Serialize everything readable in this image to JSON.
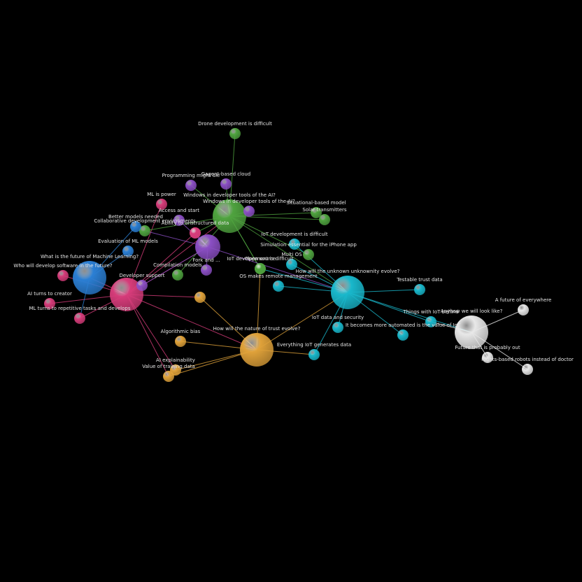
{
  "palette": {
    "background": "#000000",
    "pink": "#d63c7a",
    "blue": "#2b7fd4",
    "green": "#4fa33f",
    "purple": "#8b4fc4",
    "cyan": "#19b8cc",
    "orange": "#e0a23a",
    "white": "#e8e8e8"
  },
  "nodes": [
    {
      "id": "pink-hub",
      "group": "pink",
      "size": "large",
      "label": ""
    },
    {
      "id": "blue-hub",
      "group": "blue",
      "size": "large",
      "label": "What is the future of Machine Learning?"
    },
    {
      "id": "green-hub",
      "group": "green",
      "size": "large",
      "label": "Windows in developer tools of the AI?"
    },
    {
      "id": "purple-hub",
      "group": "purple",
      "size": "medium",
      "label": ""
    },
    {
      "id": "cyan-hub",
      "group": "cyan",
      "size": "large",
      "label": "How will the unknown unknownity evolve?"
    },
    {
      "id": "orange-hub",
      "group": "orange",
      "size": "large",
      "label": "How will the nature of trust evolve?"
    },
    {
      "id": "white-hub",
      "group": "white",
      "size": "large",
      "label": "Anyhow we will look like?"
    },
    {
      "id": "g-drone",
      "group": "green",
      "size": "small",
      "label": "Drone development is difficult"
    },
    {
      "id": "g-collab",
      "group": "green",
      "size": "small",
      "label": "Collaborative development environments"
    },
    {
      "id": "g-compmd",
      "group": "green",
      "size": "small",
      "label": "Compilation models"
    },
    {
      "id": "g-sim",
      "group": "green",
      "size": "small",
      "label": "Simulation essential for the iPhone app"
    },
    {
      "id": "g-iot",
      "group": "green",
      "size": "small",
      "label": "IoT development is difficult"
    },
    {
      "id": "g-solar",
      "group": "green",
      "size": "small",
      "label": "Solar transmitters"
    },
    {
      "id": "g-os",
      "group": "green",
      "size": "small",
      "label": "Open source"
    },
    {
      "id": "g-sit",
      "group": "green",
      "size": "small",
      "label": "Situational-based model"
    },
    {
      "id": "p-prog",
      "group": "purple",
      "size": "small",
      "label": "Programming might die"
    },
    {
      "id": "p-cloud",
      "group": "purple",
      "size": "small",
      "label": "Gagent-based cloud"
    },
    {
      "id": "p-wind",
      "group": "purple",
      "size": "small",
      "label": "Windows in developer tools of the AI?"
    },
    {
      "id": "p-access",
      "group": "purple",
      "size": "small",
      "label": "Access and start"
    },
    {
      "id": "p-fork",
      "group": "purple",
      "size": "small",
      "label": "Fork and ..."
    },
    {
      "id": "p-dev",
      "group": "purple",
      "size": "small",
      "label": "Developer support"
    },
    {
      "id": "k-mlpower",
      "group": "pink",
      "size": "small",
      "label": "ML is power"
    },
    {
      "id": "k-ability",
      "group": "pink",
      "size": "small",
      "label": "Ability to unstructured data"
    },
    {
      "id": "k-who",
      "group": "pink",
      "size": "small",
      "label": "Who will develop software in the future?"
    },
    {
      "id": "k-aicreator",
      "group": "pink",
      "size": "small",
      "label": "AI turns to creator"
    },
    {
      "id": "k-ml",
      "group": "pink",
      "size": "small",
      "label": "ML turns to repetitive tasks and develops"
    },
    {
      "id": "k-misc",
      "group": "pink",
      "size": "small",
      "label": ""
    },
    {
      "id": "b-eval",
      "group": "blue",
      "size": "small",
      "label": "Evaluation of ML models"
    },
    {
      "id": "b-better",
      "group": "blue",
      "size": "small",
      "label": "Better models needed"
    },
    {
      "id": "c-iotsec",
      "group": "cyan",
      "size": "small",
      "label": "IoT data and security"
    },
    {
      "id": "c-every",
      "group": "cyan",
      "size": "small",
      "label": "Everything IoT generates data"
    },
    {
      "id": "c-trust",
      "group": "cyan",
      "size": "small",
      "label": "Testable trust data"
    },
    {
      "id": "c-things",
      "group": "cyan",
      "size": "small",
      "label": "Things with IoT behind"
    },
    {
      "id": "c-data",
      "group": "cyan",
      "size": "small",
      "label": "It becomes more automated is the value of IoT"
    },
    {
      "id": "c-mgmt",
      "group": "cyan",
      "size": "small",
      "label": "OS makes remote management"
    },
    {
      "id": "c-ide",
      "group": "cyan",
      "size": "small",
      "label": "IoT development is difficult"
    },
    {
      "id": "c-edge",
      "group": "cyan",
      "size": "small",
      "label": "Multi OS"
    },
    {
      "id": "o-algo",
      "group": "orange",
      "size": "small",
      "label": "Algorithmic bias"
    },
    {
      "id": "o-expl",
      "group": "orange",
      "size": "small",
      "label": "AI explainability"
    },
    {
      "id": "o-value",
      "group": "orange",
      "size": "small",
      "label": "Value of training data"
    },
    {
      "id": "o-misc",
      "group": "orange",
      "size": "small",
      "label": ""
    },
    {
      "id": "w-future",
      "group": "white",
      "size": "small",
      "label": "A future of everywhere"
    },
    {
      "id": "w-nature",
      "group": "white",
      "size": "small",
      "label": "Future that is probably out"
    },
    {
      "id": "w-rob",
      "group": "white",
      "size": "small",
      "label": "Rights-based robots instead of doctor"
    }
  ],
  "edges": [
    [
      "pink-hub",
      "blue-hub"
    ],
    [
      "pink-hub",
      "k-mlpower"
    ],
    [
      "pink-hub",
      "k-ability"
    ],
    [
      "pink-hub",
      "k-who"
    ],
    [
      "pink-hub",
      "k-aicreator"
    ],
    [
      "pink-hub",
      "k-ml"
    ],
    [
      "pink-hub",
      "green-hub"
    ],
    [
      "pink-hub",
      "purple-hub"
    ],
    [
      "pink-hub",
      "orange-hub"
    ],
    [
      "pink-hub",
      "o-misc"
    ],
    [
      "pink-hub",
      "o-value"
    ],
    [
      "pink-hub",
      "o-expl"
    ],
    [
      "blue-hub",
      "b-eval"
    ],
    [
      "blue-hub",
      "b-better"
    ],
    [
      "blue-hub",
      "k-ml"
    ],
    [
      "green-hub",
      "g-drone"
    ],
    [
      "green-hub",
      "g-collab"
    ],
    [
      "green-hub",
      "g-compmd"
    ],
    [
      "green-hub",
      "g-sim"
    ],
    [
      "green-hub",
      "g-iot"
    ],
    [
      "green-hub",
      "g-solar"
    ],
    [
      "green-hub",
      "g-os"
    ],
    [
      "green-hub",
      "g-sit"
    ],
    [
      "green-hub",
      "cyan-hub"
    ],
    [
      "green-hub",
      "p-prog"
    ],
    [
      "green-hub",
      "p-cloud"
    ],
    [
      "green-hub",
      "p-wind"
    ],
    [
      "green-hub",
      "k-ability"
    ],
    [
      "purple-hub",
      "p-access"
    ],
    [
      "purple-hub",
      "p-fork"
    ],
    [
      "purple-hub",
      "p-dev"
    ],
    [
      "purple-hub",
      "g-collab"
    ],
    [
      "purple-hub",
      "k-misc"
    ],
    [
      "purple-hub",
      "cyan-hub"
    ],
    [
      "cyan-hub",
      "c-iotsec"
    ],
    [
      "cyan-hub",
      "c-every"
    ],
    [
      "cyan-hub",
      "c-trust"
    ],
    [
      "cyan-hub",
      "c-things"
    ],
    [
      "cyan-hub",
      "c-data"
    ],
    [
      "cyan-hub",
      "c-mgmt"
    ],
    [
      "cyan-hub",
      "c-ide"
    ],
    [
      "cyan-hub",
      "c-edge"
    ],
    [
      "cyan-hub",
      "white-hub"
    ],
    [
      "cyan-hub",
      "g-iot"
    ],
    [
      "orange-hub",
      "o-algo"
    ],
    [
      "orange-hub",
      "o-expl"
    ],
    [
      "orange-hub",
      "o-value"
    ],
    [
      "orange-hub",
      "o-misc"
    ],
    [
      "orange-hub",
      "cyan-hub"
    ],
    [
      "orange-hub",
      "c-every"
    ],
    [
      "orange-hub",
      "g-os"
    ],
    [
      "white-hub",
      "w-future"
    ],
    [
      "white-hub",
      "w-nature"
    ],
    [
      "white-hub",
      "w-rob"
    ],
    [
      "white-hub",
      "c-things"
    ]
  ]
}
